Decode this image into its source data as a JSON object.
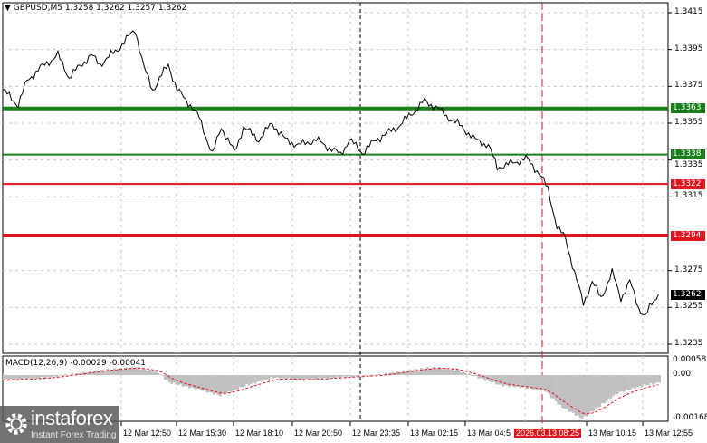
{
  "header": {
    "symbol_line": "GBPUSD,M5  1.3258 1.3262 1.3257 1.3262",
    "menu_icon": "triangle-down-icon"
  },
  "price_axis": {
    "ticks": [
      "1.3415",
      "1.3395",
      "1.3375",
      "1.3355",
      "1.3335",
      "1.3315",
      "1.3275",
      "1.3255",
      "1.3235"
    ]
  },
  "levels": [
    {
      "value": "1.3363",
      "color": "#1a7f1a",
      "thick": true
    },
    {
      "value": "1.3338",
      "color": "#1a7f1a",
      "thick": false
    },
    {
      "value": "1.3322",
      "color": "#e0141e",
      "thick": false
    },
    {
      "value": "1.3294",
      "color": "#e0141e",
      "thick": true
    }
  ],
  "current_price": {
    "value": "1.3262",
    "color": "#000000"
  },
  "time_axis": {
    "labels": [
      "12 Mar 12:50",
      "12 Mar 15:30",
      "12 Mar 18:10",
      "12 Mar 20:50",
      "12 Mar 23:35",
      "13 Mar 02:15",
      "13 Mar 04:5",
      "13 Mar 10:15",
      "13 Mar 12:55"
    ],
    "cursor_label": "2026.03.13 08:25"
  },
  "macd": {
    "title": "MACD(12,26,9) -0.00029 -0.00041",
    "ticks": [
      "0.00058",
      "0.00",
      "-0.00168"
    ]
  },
  "logo": {
    "name": "instaforex",
    "tagline": "Instant Forex Trading"
  },
  "chart_data": {
    "type": "line",
    "title": "GBPUSD,M5",
    "ylim": [
      1.323,
      1.342
    ],
    "price_series": [
      [
        0,
        1.3373
      ],
      [
        7,
        1.3365
      ],
      [
        11,
        1.3378
      ],
      [
        17,
        1.3385
      ],
      [
        25,
        1.3392
      ],
      [
        30,
        1.338
      ],
      [
        40,
        1.3392
      ],
      [
        44,
        1.3387
      ],
      [
        52,
        1.3395
      ],
      [
        60,
        1.3406
      ],
      [
        64,
        1.3385
      ],
      [
        68,
        1.3373
      ],
      [
        75,
        1.3387
      ],
      [
        79,
        1.3373
      ],
      [
        85,
        1.3365
      ],
      [
        89,
        1.3358
      ],
      [
        95,
        1.3338
      ],
      [
        99,
        1.3353
      ],
      [
        105,
        1.3339
      ],
      [
        109,
        1.3353
      ],
      [
        116,
        1.3346
      ],
      [
        122,
        1.3355
      ],
      [
        128,
        1.3346
      ],
      [
        134,
        1.3343
      ],
      [
        142,
        1.3346
      ],
      [
        153,
        1.3338
      ],
      [
        157,
        1.3346
      ],
      [
        163,
        1.3339
      ],
      [
        169,
        1.3346
      ],
      [
        179,
        1.3353
      ],
      [
        185,
        1.336
      ],
      [
        191,
        1.3367
      ],
      [
        196,
        1.3364
      ],
      [
        202,
        1.3358
      ],
      [
        208,
        1.3353
      ],
      [
        214,
        1.3346
      ],
      [
        220,
        1.3343
      ],
      [
        224,
        1.3331
      ],
      [
        230,
        1.3333
      ],
      [
        237,
        1.3336
      ],
      [
        243,
        1.3328
      ],
      [
        247,
        1.3319
      ],
      [
        251,
        1.3299
      ],
      [
        255,
        1.3292
      ],
      [
        259,
        1.3274
      ],
      [
        263,
        1.3257
      ],
      [
        267,
        1.3269
      ],
      [
        271,
        1.326
      ],
      [
        276,
        1.3274
      ],
      [
        280,
        1.326
      ],
      [
        284,
        1.3269
      ],
      [
        288,
        1.3255
      ],
      [
        291,
        1.325
      ],
      [
        294,
        1.3257
      ],
      [
        297,
        1.3262
      ]
    ],
    "macd_histogram": [
      [
        0,
        -0.0002
      ],
      [
        20,
        -0.0001
      ],
      [
        45,
        0.0002
      ],
      [
        60,
        0.0003
      ],
      [
        70,
        0.0001
      ],
      [
        75,
        -0.0003
      ],
      [
        90,
        -0.0006
      ],
      [
        98,
        -0.0008
      ],
      [
        110,
        -0.0004
      ],
      [
        122,
        -0.0001
      ],
      [
        135,
        -0.0002
      ],
      [
        150,
        -0.0001
      ],
      [
        170,
        0.0
      ],
      [
        185,
        0.0002
      ],
      [
        195,
        0.0003
      ],
      [
        205,
        0.0002
      ],
      [
        215,
        -0.0001
      ],
      [
        225,
        -0.0004
      ],
      [
        237,
        -0.0005
      ],
      [
        245,
        -0.0006
      ],
      [
        252,
        -0.0012
      ],
      [
        262,
        -0.0017
      ],
      [
        270,
        -0.0012
      ],
      [
        278,
        -0.0007
      ],
      [
        290,
        -0.0004
      ],
      [
        297,
        -0.0003
      ]
    ],
    "macd_signal_last": -0.00041,
    "macd_ylim": [
      -0.00168,
      0.00058
    ],
    "colors": {
      "price": "#000000",
      "histogram": "#c0c0c0",
      "signal": "#e0141e",
      "cursor_line": "#e0141e"
    }
  }
}
